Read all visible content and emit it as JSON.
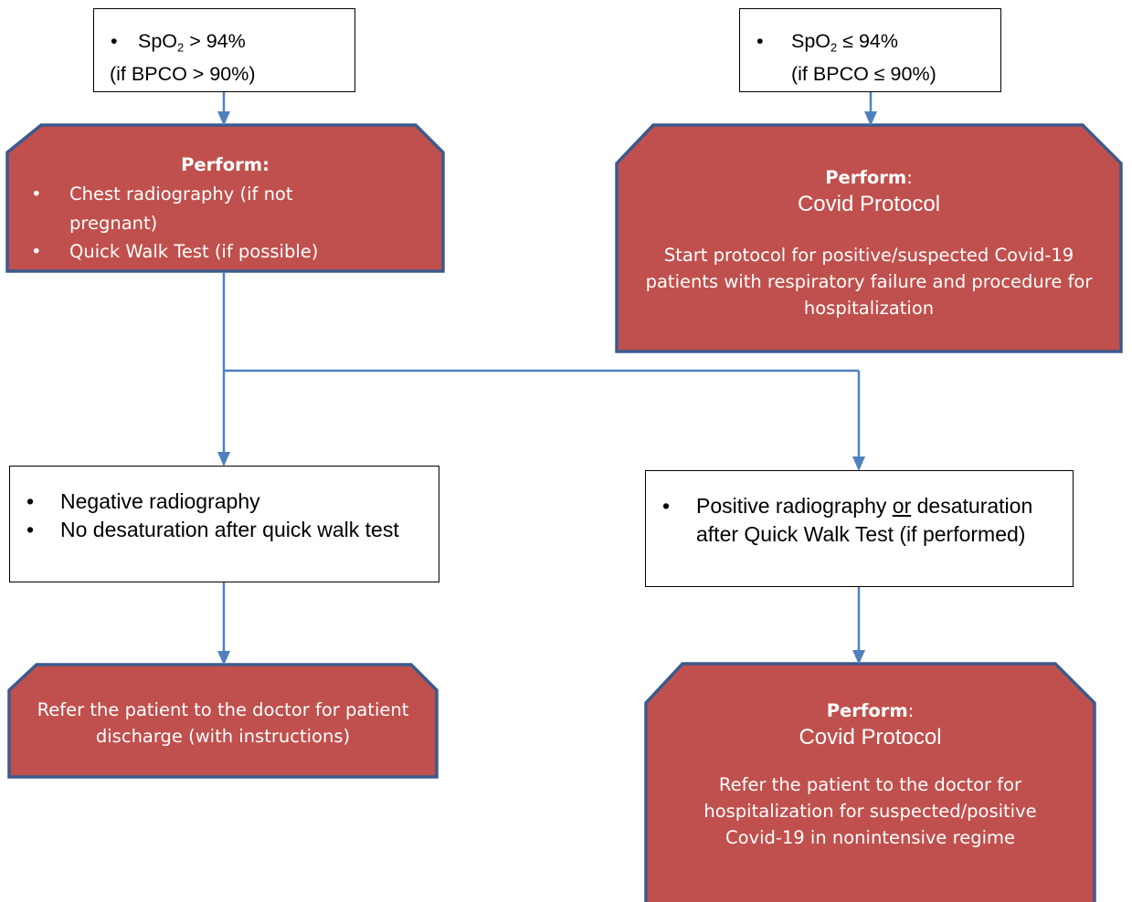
{
  "top_left_box": {
    "metric": "SpO",
    "sub": "2",
    "condition": "> 94%",
    "note": "(if BPCO > 90%)"
  },
  "top_right_box": {
    "metric": "SpO",
    "sub": "2",
    "condition": "≤ 94%",
    "note": "(if BPCO ≤ 90%)"
  },
  "left_action": {
    "heading": "Perform:",
    "items": [
      "Chest radiography (if not pregnant)",
      "Quick Walk Test (if possible)"
    ]
  },
  "right_action": {
    "heading": "Perform",
    "colon": ":",
    "subtitle": "Covid Protocol",
    "body": "Start protocol for positive/suspected Covid-19 patients with respiratory failure and procedure for hospitalization"
  },
  "negative_box": {
    "item1": "Negative radiography",
    "item2": "No desaturation after quick walk test"
  },
  "positive_box": {
    "part1": "Positive radiography",
    "or": "or",
    "part2": "desaturation after Quick Walk Test (if performed)"
  },
  "discharge_action": {
    "body": "Refer the patient to the doctor for patient discharge (with instructions)"
  },
  "hospitalization_action": {
    "heading": "Perform",
    "colon": ":",
    "subtitle": "Covid Protocol",
    "body": "Refer the patient to the doctor for hospitalization for suspected/positive Covid-19 in nonintensive regime"
  },
  "colors": {
    "red_fill": "#c0504d",
    "red_border": "#3c5a8c",
    "connector": "#4f81bd",
    "white_border": "#000000"
  }
}
